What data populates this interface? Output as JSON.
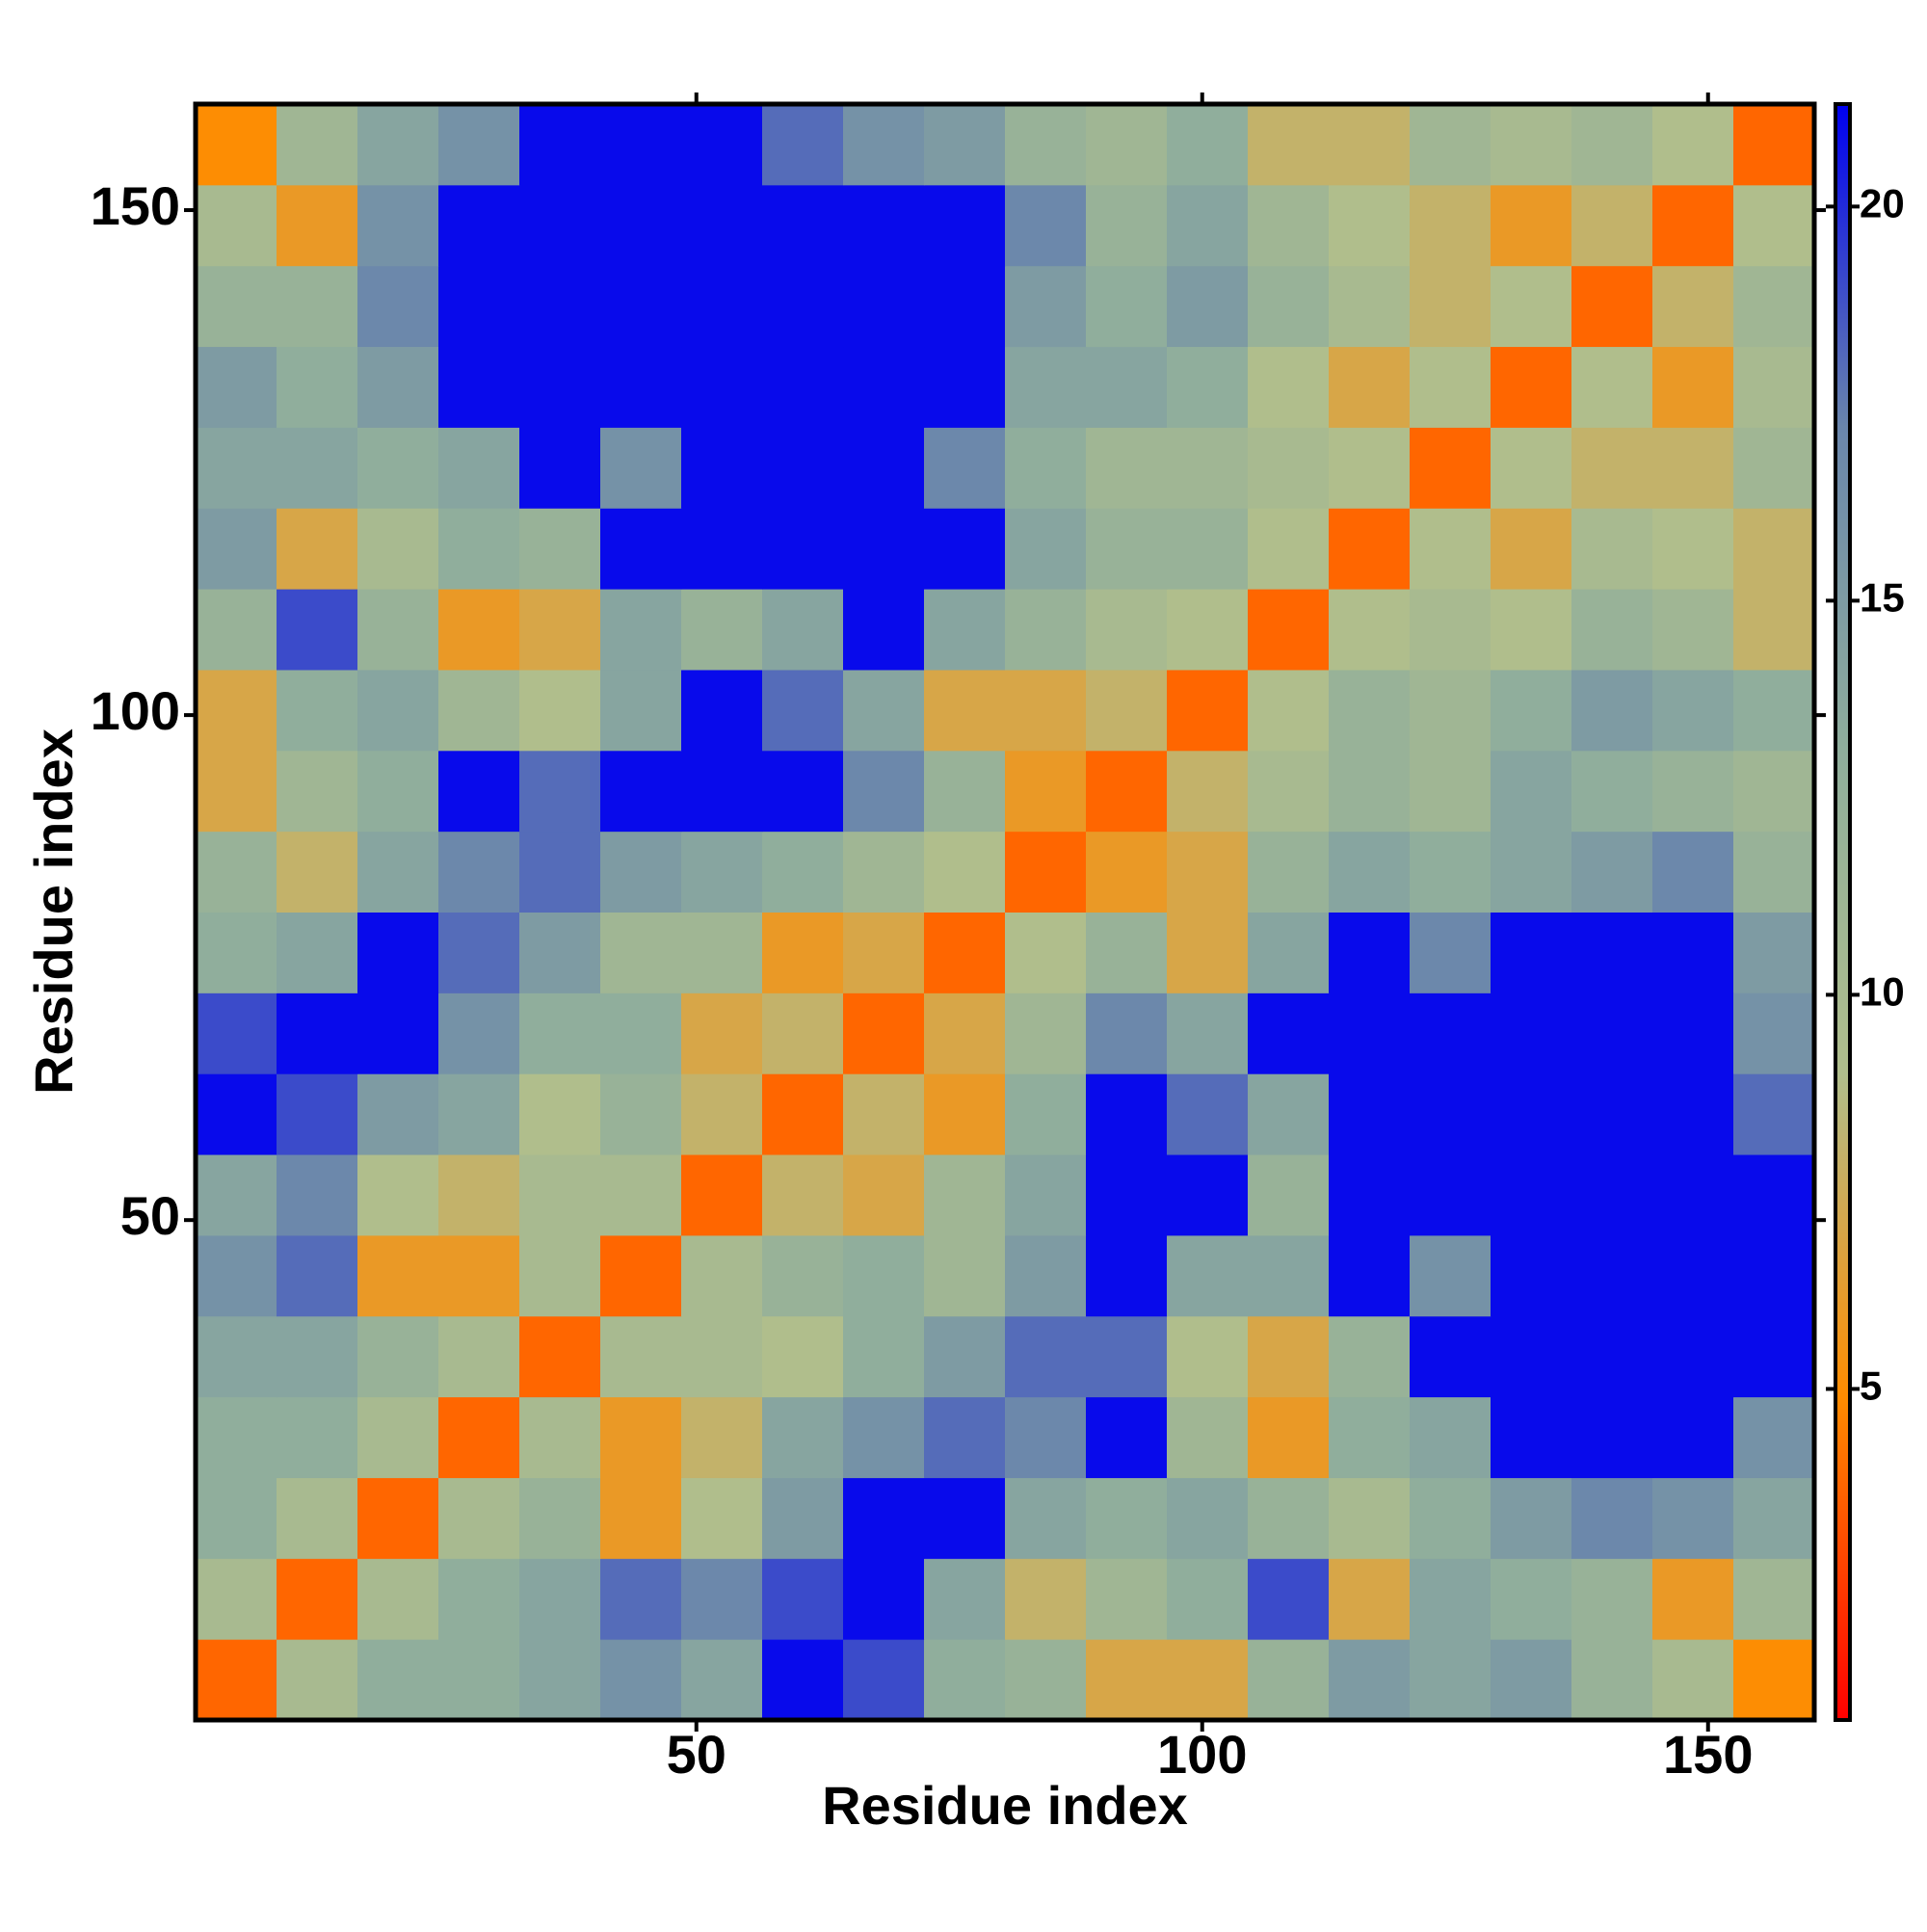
{
  "chart_data": {
    "type": "heatmap",
    "x_label": "Residue index",
    "y_label": "Residue index",
    "x": [
      4.5,
      12.5,
      20.5,
      28.5,
      36.5,
      44.5,
      52.5,
      60.5,
      68.5,
      76.5,
      84.5,
      92.5,
      100.5,
      108.5,
      116.5,
      124.5,
      132.5,
      140.5,
      148.5,
      156.5
    ],
    "y": [
      4.5,
      12.5,
      20.5,
      28.5,
      36.5,
      44.5,
      52.5,
      60.5,
      68.5,
      76.5,
      84.5,
      92.5,
      100.5,
      108.5,
      116.5,
      124.5,
      132.5,
      140.5,
      148.5,
      156.5
    ],
    "z": [
      [
        3.8,
        10,
        13,
        13,
        14,
        16,
        14,
        21,
        19,
        13,
        12,
        7,
        7,
        12,
        15,
        14,
        15,
        12,
        10,
        5
      ],
      [
        10,
        3.8,
        10,
        13,
        14,
        18,
        17,
        19,
        21,
        14,
        8,
        11,
        13,
        19,
        7,
        14,
        13,
        12,
        6,
        11
      ],
      [
        13,
        10,
        3.8,
        10,
        12,
        6,
        9,
        15,
        21,
        21,
        14,
        13,
        14,
        12,
        10,
        13,
        15,
        17,
        16,
        14
      ],
      [
        13,
        13,
        10,
        3.8,
        10,
        6,
        8,
        14,
        16,
        18,
        17,
        21,
        11,
        6,
        13,
        14,
        21,
        21,
        21,
        16
      ],
      [
        14,
        14,
        12,
        10,
        3.8,
        10,
        10,
        9,
        13,
        15,
        18,
        18,
        9,
        7,
        12,
        21,
        21,
        21,
        21,
        21
      ],
      [
        16,
        18,
        6,
        6,
        10,
        3.8,
        10,
        12,
        13,
        11,
        15,
        21,
        14,
        14,
        21,
        16,
        21,
        21,
        21,
        21
      ],
      [
        14,
        17,
        9,
        8,
        10,
        10,
        3.8,
        8,
        7,
        11,
        14,
        21,
        21,
        12,
        21,
        21,
        21,
        21,
        21,
        21
      ],
      [
        21,
        19,
        15,
        14,
        9,
        12,
        8,
        3.8,
        8,
        6,
        13,
        21,
        18,
        14,
        21,
        21,
        21,
        21,
        21,
        18
      ],
      [
        19,
        21,
        21,
        16,
        13,
        13,
        7,
        8,
        3.8,
        7,
        11,
        17,
        14,
        21,
        21,
        21,
        21,
        21,
        21,
        16
      ],
      [
        13,
        14,
        21,
        18,
        15,
        11,
        11,
        6,
        7,
        3.8,
        9,
        12,
        7,
        14,
        21,
        17,
        21,
        21,
        21,
        15
      ],
      [
        12,
        8,
        14,
        17,
        18,
        15,
        14,
        13,
        11,
        9,
        3.8,
        6,
        7,
        12,
        14,
        13,
        14,
        15,
        17,
        12
      ],
      [
        7,
        11,
        13,
        21,
        18,
        21,
        21,
        21,
        17,
        12,
        6,
        3.8,
        8,
        10,
        12,
        11,
        14,
        13,
        12,
        11
      ],
      [
        7,
        13,
        14,
        11,
        9,
        14,
        21,
        18,
        14,
        7,
        7,
        8,
        3.8,
        9,
        12,
        11,
        13,
        15,
        14,
        13
      ],
      [
        12,
        19,
        12,
        6,
        7,
        14,
        12,
        14,
        21,
        14,
        12,
        10,
        9,
        3.8,
        9,
        10,
        9,
        12,
        11,
        8
      ],
      [
        15,
        7,
        10,
        13,
        12,
        21,
        21,
        21,
        21,
        21,
        14,
        12,
        12,
        9,
        3.8,
        9,
        7,
        10,
        9,
        8
      ],
      [
        14,
        14,
        13,
        14,
        21,
        16,
        21,
        21,
        21,
        17,
        13,
        11,
        11,
        10,
        9,
        3.8,
        9,
        8,
        8,
        11
      ],
      [
        15,
        13,
        15,
        21,
        21,
        21,
        21,
        21,
        21,
        21,
        14,
        14,
        13,
        9,
        7,
        9,
        3.8,
        9,
        6,
        10
      ],
      [
        12,
        12,
        17,
        21,
        21,
        21,
        21,
        21,
        21,
        21,
        15,
        13,
        15,
        12,
        10,
        8,
        9,
        3.8,
        8,
        11
      ],
      [
        10,
        6,
        16,
        21,
        21,
        21,
        21,
        21,
        21,
        21,
        17,
        12,
        14,
        11,
        9,
        8,
        6,
        8,
        3.8,
        9
      ],
      [
        5,
        11,
        14,
        16,
        21,
        21,
        21,
        18,
        16,
        15,
        12,
        11,
        13,
        8,
        8,
        11,
        10,
        11,
        9,
        3.8
      ]
    ],
    "xlim": [
      0.5,
      160.5
    ],
    "ylim": [
      0.5,
      160.5
    ],
    "xticks": [
      50,
      100,
      150
    ],
    "yticks": [
      50,
      100,
      150
    ],
    "zlim": [
      0.8,
      21.3
    ],
    "zticks": [
      5,
      10,
      15,
      20
    ],
    "colors": [
      "#ff0000",
      "#ff8c00",
      "#b0be8c",
      "#8fae9c",
      "#6a86ac",
      "#0000f0"
    ]
  }
}
